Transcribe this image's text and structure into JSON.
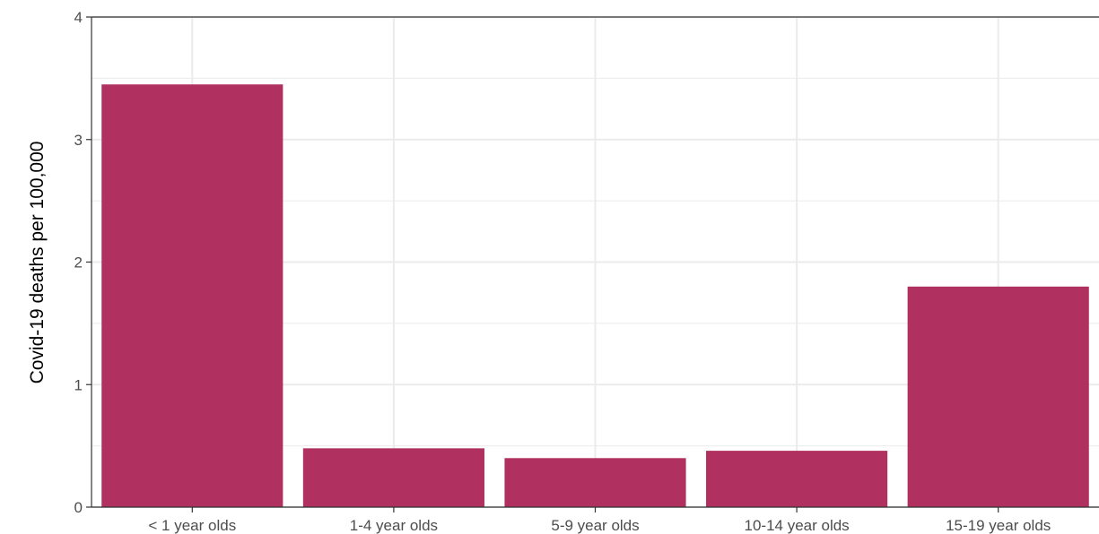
{
  "chart_data": {
    "type": "bar",
    "title": "",
    "xlabel": "",
    "ylabel": "Covid-19 deaths per 100,000",
    "categories": [
      "< 1 year olds",
      "1-4 year olds",
      "5-9 year olds",
      "10-14 year olds",
      "15-19 year olds"
    ],
    "values": [
      3.45,
      0.48,
      0.4,
      0.46,
      1.8
    ],
    "ylim": [
      0,
      4
    ],
    "yticks": [
      "0",
      "1",
      "2",
      "3",
      "4"
    ],
    "grid": true,
    "bar_color": "#B03060",
    "grid_color": "#EBEBEB",
    "axis_color": "#333333"
  }
}
